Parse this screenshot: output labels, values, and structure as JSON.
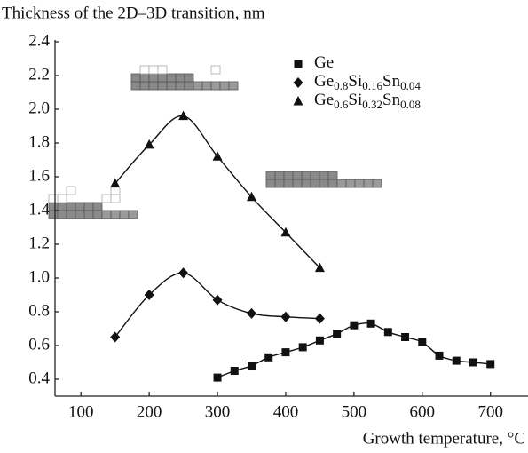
{
  "chart_data": {
    "type": "scatter",
    "title": "Thickness of the 2D–3D transition, nm",
    "x_label": "Growth temperature, °C",
    "xlim": [
      62,
      755
    ],
    "ylim": [
      0.3,
      2.4
    ],
    "xticks": [
      100,
      200,
      300,
      400,
      500,
      600,
      700
    ],
    "yticks": [
      {
        "value": 0.4,
        "label": "0.4"
      },
      {
        "value": 0.6,
        "label": "0.6"
      },
      {
        "value": 0.8,
        "label": "0.8"
      },
      {
        "value": 1.0,
        "label": "1.0"
      },
      {
        "value": 1.2,
        "label": "1.2"
      },
      {
        "value": 1.4,
        "label": "1.4"
      },
      {
        "value": 1.6,
        "label": "1.6"
      },
      {
        "value": 1.8,
        "label": "1.8"
      },
      {
        "value": 2.0,
        "label": "2.0"
      },
      {
        "value": 2.2,
        "label": "2.2"
      },
      {
        "value": 2.4,
        "label": "2.4"
      }
    ],
    "legend": "upper right",
    "series": [
      {
        "name": "Ge",
        "color": "#111111",
        "marker": "square",
        "x": [
          300,
          325,
          350,
          375,
          400,
          425,
          450,
          475,
          500,
          525,
          550,
          575,
          600,
          625,
          650,
          675,
          700
        ],
        "values": [
          0.41,
          0.45,
          0.48,
          0.53,
          0.56,
          0.59,
          0.63,
          0.67,
          0.72,
          0.73,
          0.68,
          0.65,
          0.62,
          0.54,
          0.51,
          0.5,
          0.49
        ]
      },
      {
        "name": "Ge0.8Si0.16Sn0.04",
        "color": "#111111",
        "marker": "diamond",
        "x": [
          150,
          200,
          250,
          300,
          350,
          400,
          450
        ],
        "values": [
          0.65,
          0.9,
          1.03,
          0.87,
          0.79,
          0.77,
          0.76
        ]
      },
      {
        "name": "Ge0.6Si0.32Sn0.08",
        "color": "#111111",
        "marker": "triangle",
        "x": [
          150,
          200,
          250,
          300,
          350,
          400,
          450
        ],
        "values": [
          1.56,
          1.79,
          1.96,
          1.72,
          1.48,
          1.27,
          1.06
        ]
      }
    ]
  }
}
